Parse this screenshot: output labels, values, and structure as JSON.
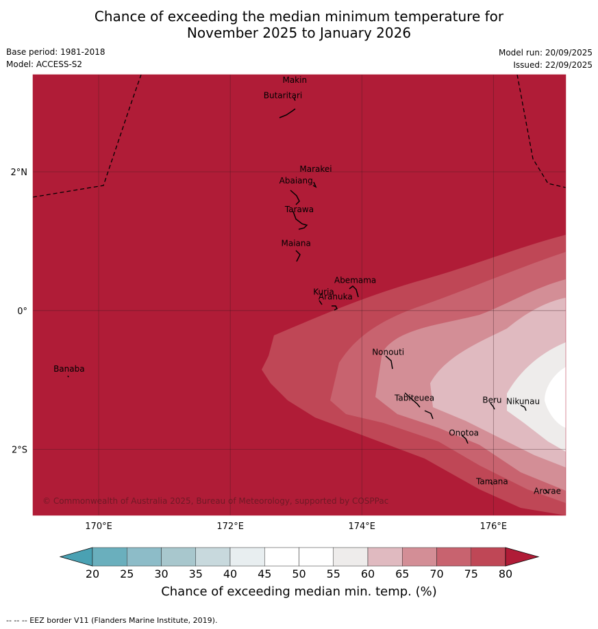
{
  "title": {
    "line1": "Chance of exceeding the median minimum temperature for",
    "line2": "November 2025 to January 2026"
  },
  "meta": {
    "base_period": "Base period: 1981-2018",
    "model": "Model: ACCESS-S2",
    "model_run": "Model run: 20/09/2025",
    "issued": "Issued: 22/09/2025"
  },
  "map": {
    "lon_range": [
      169,
      177.1
    ],
    "lat_range": [
      -2.95,
      3.4
    ],
    "lon_ticks": [
      {
        "value": 170,
        "label": "170°E"
      },
      {
        "value": 172,
        "label": "172°E"
      },
      {
        "value": 174,
        "label": "174°E"
      },
      {
        "value": 176,
        "label": "176°E"
      }
    ],
    "lat_ticks": [
      {
        "value": 2,
        "label": "2°N"
      },
      {
        "value": 0,
        "label": "0°"
      },
      {
        "value": -2,
        "label": "2°S"
      }
    ],
    "copyright": "© Commonwealth of Australia 2025, Bureau of Meteorology, supported by COSPPac",
    "places": [
      {
        "name": "Makin",
        "lon": 172.98,
        "lat": 3.28
      },
      {
        "name": "Butaritari",
        "lon": 172.8,
        "lat": 3.06
      },
      {
        "name": "Marakei",
        "lon": 173.3,
        "lat": 2.0
      },
      {
        "name": "Abaiang",
        "lon": 173.0,
        "lat": 1.83
      },
      {
        "name": "Tarawa",
        "lon": 173.05,
        "lat": 1.42
      },
      {
        "name": "Maiana",
        "lon": 173.0,
        "lat": 0.93
      },
      {
        "name": "Abemama",
        "lon": 173.9,
        "lat": 0.4
      },
      {
        "name": "Kuria",
        "lon": 173.42,
        "lat": 0.23
      },
      {
        "name": "Aranuka",
        "lon": 173.6,
        "lat": 0.16
      },
      {
        "name": "Nonouti",
        "lon": 174.4,
        "lat": -0.64
      },
      {
        "name": "Banaba",
        "lon": 169.55,
        "lat": -0.88
      },
      {
        "name": "Tabiteuea",
        "lon": 174.8,
        "lat": -1.3
      },
      {
        "name": "Beru",
        "lon": 175.98,
        "lat": -1.33
      },
      {
        "name": "Nikunau",
        "lon": 176.45,
        "lat": -1.35
      },
      {
        "name": "Onotoa",
        "lon": 175.55,
        "lat": -1.8
      },
      {
        "name": "Tamana",
        "lon": 175.98,
        "lat": -2.5
      },
      {
        "name": "Arorae",
        "lon": 176.82,
        "lat": -2.64
      }
    ]
  },
  "colorbar": {
    "label": "Chance of exceeding median min. temp. (%)",
    "ticks": [
      "20",
      "25",
      "30",
      "35",
      "40",
      "45",
      "50",
      "55",
      "60",
      "65",
      "70",
      "75",
      "80"
    ],
    "colors": [
      "#6aafbd",
      "#8dbcc8",
      "#a8c7cd",
      "#c8d9dd",
      "#e8eef0",
      "#ffffff",
      "#ffffff",
      "#eeeceb",
      "#e0bac0",
      "#d38e96",
      "#c8636f",
      "#bf4756"
    ],
    "under_color": "#4aa1b3",
    "over_color": "#b01c37"
  },
  "footer": "--  --  -- EEZ border V11 (Flanders Marine Institute, 2019)."
}
